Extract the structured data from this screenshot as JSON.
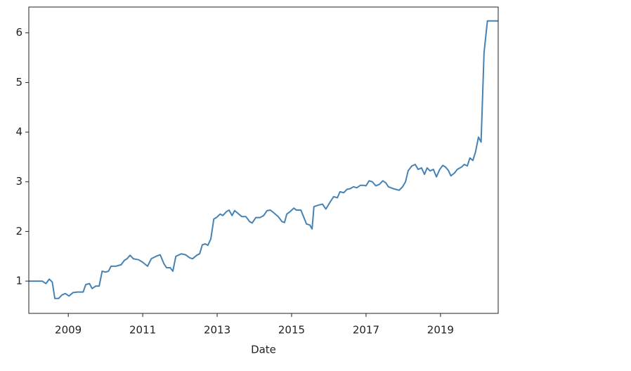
{
  "chart_data": {
    "type": "line",
    "x_label": "Date",
    "color": "#4682b4",
    "x": [
      2007.94,
      2008.3,
      2008.4,
      2008.49,
      2008.57,
      2008.64,
      2008.74,
      2008.83,
      2008.92,
      2009.02,
      2009.13,
      2009.25,
      2009.4,
      2009.47,
      2009.57,
      2009.64,
      2009.74,
      2009.83,
      2009.91,
      2010.0,
      2010.08,
      2010.15,
      2010.28,
      2010.42,
      2010.51,
      2010.58,
      2010.66,
      2010.75,
      2010.89,
      2011.0,
      2011.13,
      2011.23,
      2011.36,
      2011.47,
      2011.57,
      2011.64,
      2011.74,
      2011.81,
      2011.89,
      2012.04,
      2012.15,
      2012.26,
      2012.34,
      2012.45,
      2012.53,
      2012.6,
      2012.68,
      2012.75,
      2012.83,
      2012.91,
      2012.98,
      2013.08,
      2013.15,
      2013.25,
      2013.32,
      2013.4,
      2013.47,
      2013.58,
      2013.66,
      2013.77,
      2013.87,
      2013.94,
      2014.04,
      2014.15,
      2014.25,
      2014.34,
      2014.43,
      2014.53,
      2014.64,
      2014.74,
      2014.81,
      2014.87,
      2014.96,
      2015.06,
      2015.13,
      2015.25,
      2015.32,
      2015.4,
      2015.49,
      2015.55,
      2015.6,
      2015.72,
      2015.83,
      2015.92,
      2016.04,
      2016.13,
      2016.23,
      2016.3,
      2016.4,
      2016.49,
      2016.57,
      2016.66,
      2016.75,
      2016.85,
      2016.92,
      2017.0,
      2017.08,
      2017.17,
      2017.26,
      2017.36,
      2017.45,
      2017.53,
      2017.6,
      2017.74,
      2017.89,
      2017.98,
      2018.06,
      2018.13,
      2018.23,
      2018.32,
      2018.4,
      2018.49,
      2018.57,
      2018.64,
      2018.72,
      2018.81,
      2018.89,
      2018.98,
      2019.06,
      2019.13,
      2019.21,
      2019.28,
      2019.38,
      2019.45,
      2019.57,
      2019.64,
      2019.72,
      2019.79,
      2019.87,
      2019.94,
      2020.02,
      2020.09,
      2020.17,
      2020.26,
      2020.55
    ],
    "values": [
      1.0,
      1.0,
      0.95,
      1.04,
      0.98,
      0.65,
      0.65,
      0.72,
      0.75,
      0.7,
      0.77,
      0.78,
      0.78,
      0.93,
      0.95,
      0.85,
      0.9,
      0.9,
      1.2,
      1.18,
      1.2,
      1.3,
      1.3,
      1.33,
      1.42,
      1.45,
      1.52,
      1.45,
      1.43,
      1.38,
      1.3,
      1.45,
      1.5,
      1.53,
      1.35,
      1.27,
      1.27,
      1.2,
      1.5,
      1.55,
      1.53,
      1.47,
      1.45,
      1.52,
      1.55,
      1.73,
      1.75,
      1.72,
      1.85,
      2.25,
      2.28,
      2.35,
      2.32,
      2.4,
      2.43,
      2.32,
      2.42,
      2.35,
      2.3,
      2.3,
      2.2,
      2.17,
      2.28,
      2.28,
      2.32,
      2.42,
      2.43,
      2.37,
      2.3,
      2.2,
      2.18,
      2.35,
      2.4,
      2.47,
      2.43,
      2.43,
      2.3,
      2.15,
      2.13,
      2.05,
      2.5,
      2.53,
      2.55,
      2.45,
      2.6,
      2.7,
      2.68,
      2.8,
      2.78,
      2.85,
      2.86,
      2.9,
      2.88,
      2.93,
      2.93,
      2.92,
      3.02,
      3.0,
      2.92,
      2.95,
      3.02,
      2.98,
      2.9,
      2.86,
      2.83,
      2.9,
      3.0,
      3.22,
      3.32,
      3.35,
      3.25,
      3.28,
      3.15,
      3.28,
      3.22,
      3.25,
      3.1,
      3.25,
      3.33,
      3.3,
      3.23,
      3.12,
      3.18,
      3.25,
      3.3,
      3.35,
      3.32,
      3.48,
      3.43,
      3.6,
      3.9,
      3.8,
      5.6,
      6.24,
      6.24
    ],
    "xlim": [
      2007.94,
      2020.55
    ],
    "xticks": [
      2009,
      2011,
      2013,
      2015,
      2017,
      2019
    ],
    "ylim": [
      0.35,
      6.52
    ],
    "yticks": [
      1,
      2,
      3,
      4,
      5,
      6
    ]
  }
}
